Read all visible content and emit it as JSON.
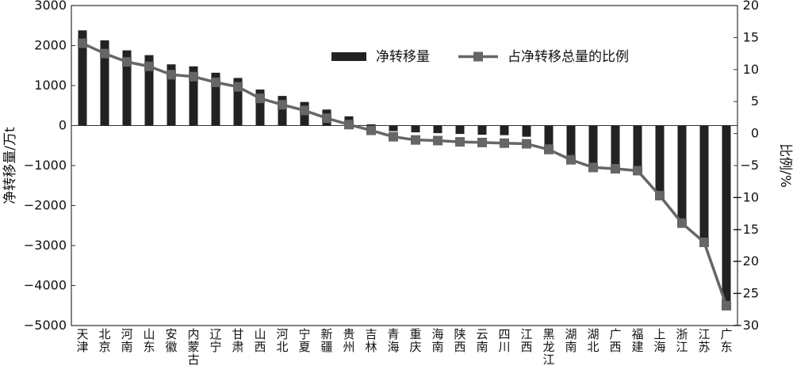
{
  "chart_data": {
    "type": "bar",
    "title": "",
    "xlabel": "",
    "ylabel": "净转移量/万t",
    "y2label": "比例/%",
    "ylim": [
      -5000,
      3000
    ],
    "y2lim": [
      -30,
      20
    ],
    "yticks": [
      3000,
      2000,
      1000,
      0,
      -1000,
      -2000,
      -3000,
      -4000,
      -5000
    ],
    "y2ticks": [
      20,
      15,
      10,
      5,
      0,
      -5,
      -10,
      -15,
      -20,
      -25,
      -30
    ],
    "grid": false,
    "legend_position": "top-right",
    "categories": [
      "天津",
      "北京",
      "河南",
      "山东",
      "安徽",
      "内蒙古",
      "辽宁",
      "甘肃",
      "山西",
      "河北",
      "宁夏",
      "新疆",
      "贵州",
      "吉林",
      "青海",
      "重庆",
      "海南",
      "陕西",
      "云南",
      "四川",
      "江西",
      "黑龙江",
      "湖南",
      "湖北",
      "广西",
      "福建",
      "上海",
      "浙江",
      "江苏",
      "广东"
    ],
    "series": [
      {
        "name": "净转移量",
        "type": "bar",
        "axis": "left",
        "color": "#222222",
        "values": [
          2380,
          2130,
          1880,
          1760,
          1530,
          1480,
          1320,
          1190,
          900,
          740,
          590,
          400,
          230,
          30,
          -140,
          -170,
          -190,
          -210,
          -230,
          -240,
          -280,
          -480,
          -780,
          -1020,
          -1080,
          -1110,
          -1710,
          -2550,
          -2960,
          -4480
        ]
      },
      {
        "name": "占净转移总量的比例",
        "type": "line",
        "axis": "right",
        "color": "#666666",
        "values": [
          14.1,
          12.5,
          11.2,
          10.5,
          9.2,
          8.9,
          8.0,
          7.3,
          5.5,
          4.5,
          3.6,
          2.4,
          1.4,
          0.5,
          -0.5,
          -1.0,
          -1.1,
          -1.3,
          -1.4,
          -1.5,
          -1.6,
          -2.5,
          -4.1,
          -5.3,
          -5.5,
          -5.8,
          -9.7,
          -14.0,
          -17.0,
          -26.9
        ]
      }
    ]
  }
}
